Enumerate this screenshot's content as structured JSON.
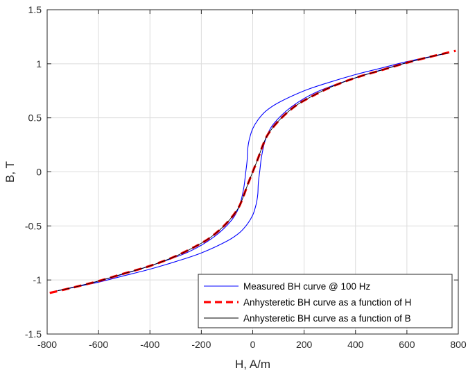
{
  "chart_data": {
    "type": "line",
    "xlabel": "H, A/m",
    "ylabel": "B, T",
    "xlim": [
      -800,
      800
    ],
    "ylim": [
      -1.5,
      1.5
    ],
    "xticks": [
      -800,
      -600,
      -400,
      -200,
      0,
      200,
      400,
      600,
      800
    ],
    "yticks": [
      -1.5,
      -1,
      -0.5,
      0,
      0.5,
      1,
      1.5
    ],
    "xtick_labels": [
      "-800",
      "-600",
      "-400",
      "-200",
      "0",
      "200",
      "400",
      "600",
      "800"
    ],
    "ytick_labels": [
      "-1.5",
      "-1",
      "-0.5",
      "0",
      "0.5",
      "1",
      "1.5"
    ],
    "grid": true,
    "legend_position": "bottom-right",
    "series": [
      {
        "name": "Measured BH curve @ 100 Hz",
        "color": "#0000ff",
        "style": "solid",
        "segments": [
          {
            "x": [
              -760,
              -600,
              -400,
              -250,
              -150,
              -80,
              -50,
              -35,
              -28,
              -22,
              -20,
              -16,
              -10,
              0,
              20,
              50,
              100,
              200,
              300,
              400,
              500,
              600,
              700,
              760
            ],
            "y": [
              -1.1,
              -1.01,
              -0.87,
              -0.74,
              -0.6,
              -0.44,
              -0.3,
              -0.15,
              -0.02,
              0.1,
              0.2,
              0.27,
              0.33,
              0.4,
              0.48,
              0.56,
              0.64,
              0.75,
              0.83,
              0.9,
              0.96,
              1.02,
              1.07,
              1.1
            ]
          },
          {
            "x": [
              760,
              600,
              400,
              250,
              150,
              80,
              50,
              35,
              28,
              22,
              20,
              16,
              10,
              0,
              -20,
              -50,
              -100,
              -200,
              -300,
              -400,
              -500,
              -600,
              -700,
              -760
            ],
            "y": [
              1.1,
              1.01,
              0.87,
              0.74,
              0.6,
              0.44,
              0.3,
              0.15,
              0.02,
              -0.1,
              -0.2,
              -0.27,
              -0.33,
              -0.4,
              -0.48,
              -0.56,
              -0.64,
              -0.75,
              -0.83,
              -0.9,
              -0.96,
              -1.02,
              -1.07,
              -1.1
            ]
          }
        ]
      },
      {
        "name": "Anhysteretic BH curve as a function of H",
        "color": "#ff0000",
        "style": "dashed",
        "segments": [
          {
            "x": [
              -790,
              -700,
              -600,
              -500,
              -400,
              -300,
              -200,
              -150,
              -100,
              -60,
              -40,
              -20,
              -10,
              0,
              10,
              20,
              40,
              60,
              100,
              150,
              200,
              300,
              400,
              500,
              600,
              700,
              790
            ],
            "y": [
              -1.12,
              -1.07,
              -1.01,
              -0.94,
              -0.87,
              -0.78,
              -0.66,
              -0.58,
              -0.47,
              -0.35,
              -0.25,
              -0.12,
              -0.06,
              0,
              0.06,
              0.12,
              0.25,
              0.35,
              0.47,
              0.58,
              0.66,
              0.78,
              0.87,
              0.94,
              1.01,
              1.07,
              1.12
            ]
          }
        ]
      },
      {
        "name": "Anhysteretic BH curve as a function of B",
        "color": "#000000",
        "style": "solid",
        "segments": [
          {
            "x": [
              -760,
              -700,
              -600,
              -500,
              -400,
              -300,
              -200,
              -150,
              -100,
              -60,
              -40,
              -20,
              -10,
              0,
              10,
              20,
              40,
              60,
              100,
              150,
              200,
              300,
              400,
              500,
              600,
              700,
              760
            ],
            "y": [
              -1.1,
              -1.07,
              -1.01,
              -0.94,
              -0.87,
              -0.78,
              -0.66,
              -0.58,
              -0.47,
              -0.35,
              -0.25,
              -0.12,
              -0.06,
              0,
              0.06,
              0.12,
              0.25,
              0.35,
              0.47,
              0.58,
              0.66,
              0.78,
              0.87,
              0.94,
              1.01,
              1.07,
              1.1
            ]
          }
        ]
      }
    ]
  }
}
